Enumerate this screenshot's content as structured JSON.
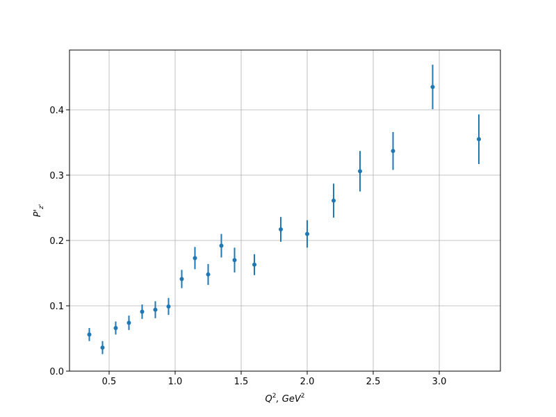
{
  "chart_data": {
    "type": "errorbar",
    "xlabel": [
      "Q",
      "2",
      ", GeV",
      "2"
    ],
    "ylabel": [
      "P'",
      "z'"
    ],
    "x": [
      0.35,
      0.45,
      0.55,
      0.65,
      0.75,
      0.85,
      0.95,
      1.05,
      1.15,
      1.25,
      1.35,
      1.45,
      1.6,
      1.8,
      2.0,
      2.2,
      2.4,
      2.65,
      2.95,
      3.3
    ],
    "series": [
      {
        "color": "#1f77b4",
        "values": [
          0.056,
          0.036,
          0.066,
          0.074,
          0.091,
          0.094,
          0.099,
          0.141,
          0.173,
          0.148,
          0.192,
          0.17,
          0.163,
          0.217,
          0.21,
          0.261,
          0.306,
          0.337,
          0.435,
          0.355
        ],
        "errors": [
          0.01,
          0.01,
          0.01,
          0.011,
          0.011,
          0.013,
          0.013,
          0.014,
          0.017,
          0.016,
          0.018,
          0.019,
          0.016,
          0.019,
          0.021,
          0.026,
          0.031,
          0.029,
          0.034,
          0.038
        ]
      }
    ],
    "xlim": [
      0.2,
      3.463
    ],
    "ylim": [
      0,
      0.4915
    ],
    "xticks": [
      0.5,
      {
        "value": 1,
        "label": "1.0"
      },
      1.5,
      {
        "value": 2,
        "label": "2.0"
      },
      2.5,
      {
        "value": 3,
        "label": "3.0"
      }
    ],
    "yticks": [
      {
        "value": 0,
        "label": "0.0"
      },
      0.1,
      0.2,
      0.3,
      0.4
    ],
    "grid": true
  }
}
